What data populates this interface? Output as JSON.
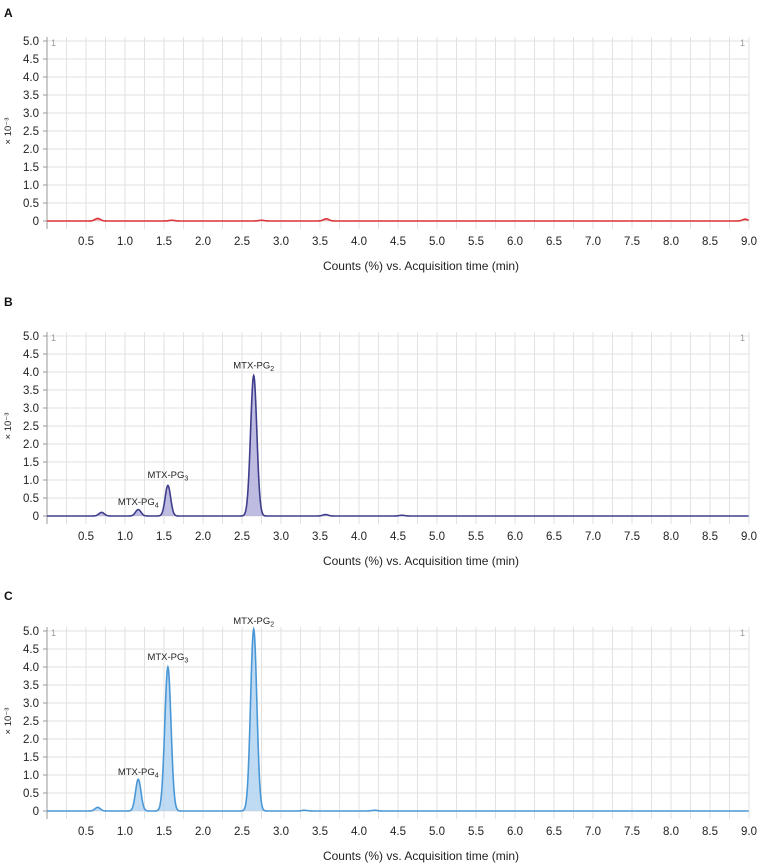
{
  "chart_data": [
    {
      "panel": "A",
      "type": "area",
      "color": "#d9343a",
      "fill": "#f2a9ab",
      "xlabel": "Counts (%) vs. Acquisition time (min)",
      "ylabel": "× 10⁻³",
      "xlim": [
        0,
        9.0
      ],
      "ylim": [
        0,
        5.0
      ],
      "xticks": [
        "0.5",
        "1.0",
        "1.5",
        "2.0",
        "2.5",
        "3.0",
        "3.5",
        "4.0",
        "4.5",
        "5.0",
        "5.5",
        "6.0",
        "6.5",
        "7.0",
        "7.5",
        "8.0",
        "8.5",
        "9.0"
      ],
      "yticks": [
        "0",
        "0.5",
        "1.0",
        "1.5",
        "2.0",
        "2.5",
        "3.0",
        "3.5",
        "4.0",
        "4.5",
        "5.0"
      ],
      "peaks": [
        {
          "rt": 0.65,
          "height": 0.07
        },
        {
          "rt": 1.6,
          "height": 0.02
        },
        {
          "rt": 2.75,
          "height": 0.02
        },
        {
          "rt": 3.58,
          "height": 0.06
        },
        {
          "rt": 8.95,
          "height": 0.05
        }
      ],
      "corner_marks": [
        "1",
        "1"
      ],
      "annotations": []
    },
    {
      "panel": "B",
      "type": "area",
      "color": "#3e3e8c",
      "fill": "#a9a6d8",
      "xlabel": "Counts (%) vs. Acquisition time (min)",
      "ylabel": "× 10⁻³",
      "xlim": [
        0,
        9.0
      ],
      "ylim": [
        0,
        5.0
      ],
      "xticks": [
        "0.5",
        "1.0",
        "1.5",
        "2.0",
        "2.5",
        "3.0",
        "3.5",
        "4.0",
        "4.5",
        "5.0",
        "5.5",
        "6.0",
        "6.5",
        "7.0",
        "7.5",
        "8.0",
        "8.5",
        "9.0"
      ],
      "yticks": [
        "0",
        "0.5",
        "1.0",
        "1.5",
        "2.0",
        "2.5",
        "3.0",
        "3.5",
        "4.0",
        "4.5",
        "5.0"
      ],
      "peaks": [
        {
          "rt": 0.7,
          "height": 0.1
        },
        {
          "rt": 1.17,
          "height": 0.18
        },
        {
          "rt": 1.55,
          "height": 0.85
        },
        {
          "rt": 2.65,
          "height": 3.9
        },
        {
          "rt": 3.57,
          "height": 0.04
        },
        {
          "rt": 4.55,
          "height": 0.02
        }
      ],
      "corner_marks": [
        "1",
        "1"
      ],
      "annotations": [
        {
          "text": "MTX-PG",
          "sub": "4",
          "x": 1.17,
          "y": 0.3
        },
        {
          "text": "MTX-PG",
          "sub": "3",
          "x": 1.55,
          "y": 1.05
        },
        {
          "text": "MTX-PG",
          "sub": "2",
          "x": 2.65,
          "y": 4.1
        }
      ]
    },
    {
      "panel": "C",
      "type": "area",
      "color": "#4a97d6",
      "fill": "#a9cff0",
      "xlabel": "Counts (%) vs. Acquisition time (min)",
      "ylabel": "× 10⁻³",
      "xlim": [
        0,
        9.0
      ],
      "ylim": [
        0,
        5.0
      ],
      "xticks": [
        "0.5",
        "1.0",
        "1.5",
        "2.0",
        "2.5",
        "3.0",
        "3.5",
        "4.0",
        "4.5",
        "5.0",
        "5.5",
        "6.0",
        "6.5",
        "7.0",
        "7.5",
        "8.0",
        "8.5",
        "9.0"
      ],
      "yticks": [
        "0",
        "0.5",
        "1.0",
        "1.5",
        "2.0",
        "2.5",
        "3.0",
        "3.5",
        "4.0",
        "4.5",
        "5.0"
      ],
      "peaks": [
        {
          "rt": 0.65,
          "height": 0.1
        },
        {
          "rt": 1.17,
          "height": 0.88
        },
        {
          "rt": 1.55,
          "height": 4.0
        },
        {
          "rt": 2.65,
          "height": 5.05
        },
        {
          "rt": 3.3,
          "height": 0.02
        },
        {
          "rt": 4.2,
          "height": 0.02
        }
      ],
      "corner_marks": [
        "1",
        "1"
      ],
      "annotations": [
        {
          "text": "MTX-PG",
          "sub": "4",
          "x": 1.17,
          "y": 1.0
        },
        {
          "text": "MTX-PG",
          "sub": "3",
          "x": 1.55,
          "y": 4.2
        },
        {
          "text": "MTX-PG",
          "sub": "2",
          "x": 2.65,
          "y": 5.2
        }
      ]
    }
  ]
}
